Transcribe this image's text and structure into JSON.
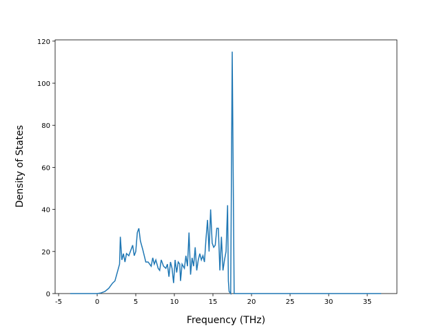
{
  "chart_data": {
    "type": "line",
    "x_label": "Frequency (THz)",
    "y_label": "Density of States",
    "xlim": [
      -5.45,
      38.84
    ],
    "ylim": [
      0,
      120.6
    ],
    "xticks": [
      -5,
      0,
      5,
      10,
      15,
      20,
      25,
      30,
      35
    ],
    "yticks": [
      0,
      20,
      40,
      60,
      80,
      100,
      120
    ],
    "series": [
      {
        "color": "#1f77b4",
        "x": [
          -3.5,
          0,
          0.5,
          1,
          1.5,
          2,
          2.3,
          2.6,
          2.9,
          3.0,
          3.2,
          3.4,
          3.6,
          3.8,
          4.1,
          4.4,
          4.6,
          4.8,
          5.0,
          5.2,
          5.4,
          5.6,
          5.9,
          6.1,
          6.3,
          6.6,
          6.8,
          7.0,
          7.2,
          7.4,
          7.6,
          7.9,
          8.1,
          8.3,
          8.6,
          8.9,
          9.1,
          9.3,
          9.5,
          9.7,
          9.9,
          10.1,
          10.3,
          10.5,
          10.7,
          10.8,
          11.0,
          11.3,
          11.5,
          11.7,
          11.9,
          12.1,
          12.3,
          12.5,
          12.7,
          12.9,
          13.1,
          13.3,
          13.5,
          13.7,
          13.9,
          14.1,
          14.3,
          14.5,
          14.7,
          14.9,
          15.1,
          15.3,
          15.5,
          15.7,
          15.9,
          16.1,
          16.3,
          16.5,
          16.7,
          16.9,
          17.0,
          17.1,
          17.3,
          17.5,
          17.75,
          18.0,
          36.8
        ],
        "values": [
          0,
          0,
          0.3,
          1,
          2.5,
          5,
          6,
          10,
          14,
          27,
          16,
          19,
          15,
          19,
          18,
          21,
          23,
          18,
          20,
          29,
          31,
          25,
          21,
          18,
          15,
          15,
          14,
          13,
          17,
          14,
          16,
          12,
          11,
          16,
          13,
          12,
          14,
          8,
          15,
          12,
          5,
          16,
          10,
          15,
          14,
          6,
          14,
          12,
          18,
          13,
          29,
          9,
          17,
          13,
          22,
          11,
          16,
          19,
          16,
          18,
          15,
          26,
          35,
          20,
          40,
          24,
          22,
          23,
          31,
          31,
          11,
          27,
          11,
          16,
          20,
          42,
          6,
          1,
          0,
          115,
          0,
          0,
          0
        ]
      }
    ]
  }
}
